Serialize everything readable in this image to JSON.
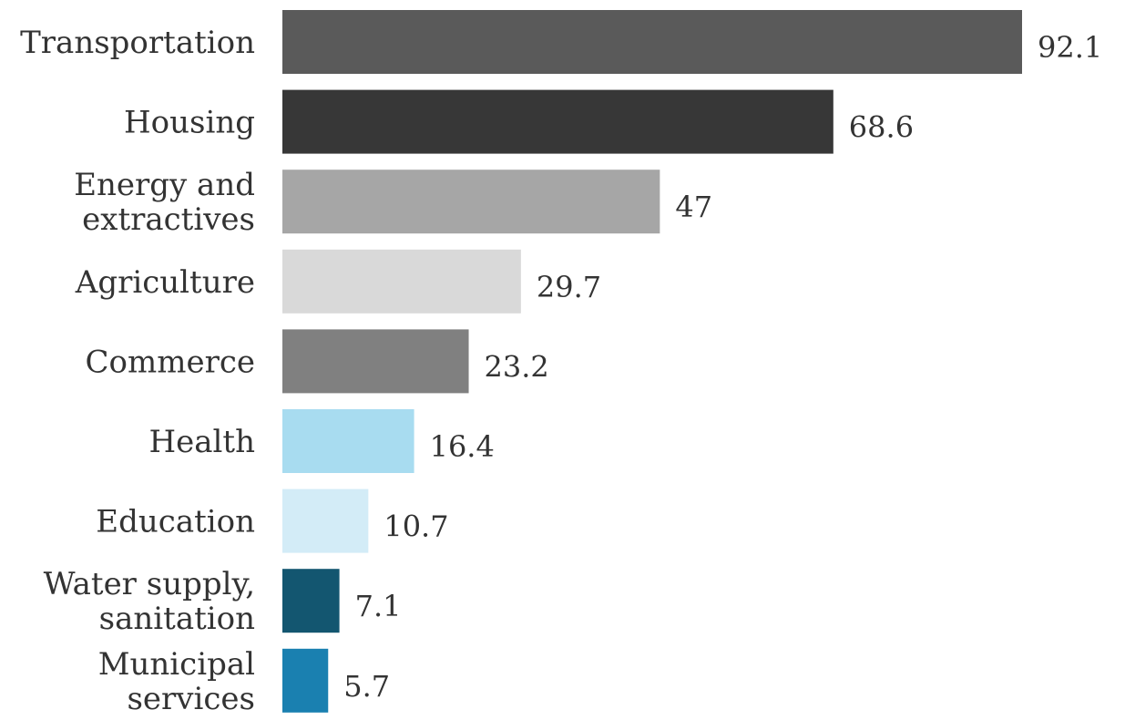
{
  "chart_data": {
    "type": "bar",
    "orientation": "horizontal",
    "title": "",
    "xlabel": "",
    "ylabel": "",
    "grid": false,
    "legend": "none",
    "xlim": [
      0,
      92.1
    ],
    "categories": [
      [
        "Transportation"
      ],
      [
        "Housing"
      ],
      [
        "Energy and",
        "extractives"
      ],
      [
        "Agriculture"
      ],
      [
        "Commerce"
      ],
      [
        "Health"
      ],
      [
        "Education"
      ],
      [
        "Water supply,",
        "sanitation"
      ],
      [
        "Municipal",
        "services"
      ]
    ],
    "values": [
      92.1,
      68.6,
      47,
      29.7,
      23.2,
      16.4,
      10.7,
      7.1,
      5.7
    ],
    "value_labels": [
      "92.1",
      "68.6",
      "47",
      "29.7",
      "23.2",
      "16.4",
      "10.7",
      "7.1",
      "5.7"
    ],
    "colors": [
      "#5a5a5a",
      "#373737",
      "#a6a6a6",
      "#d9d9d9",
      "#808080",
      "#a8dcf0",
      "#d3ecf7",
      "#135670",
      "#1a80b0"
    ]
  }
}
